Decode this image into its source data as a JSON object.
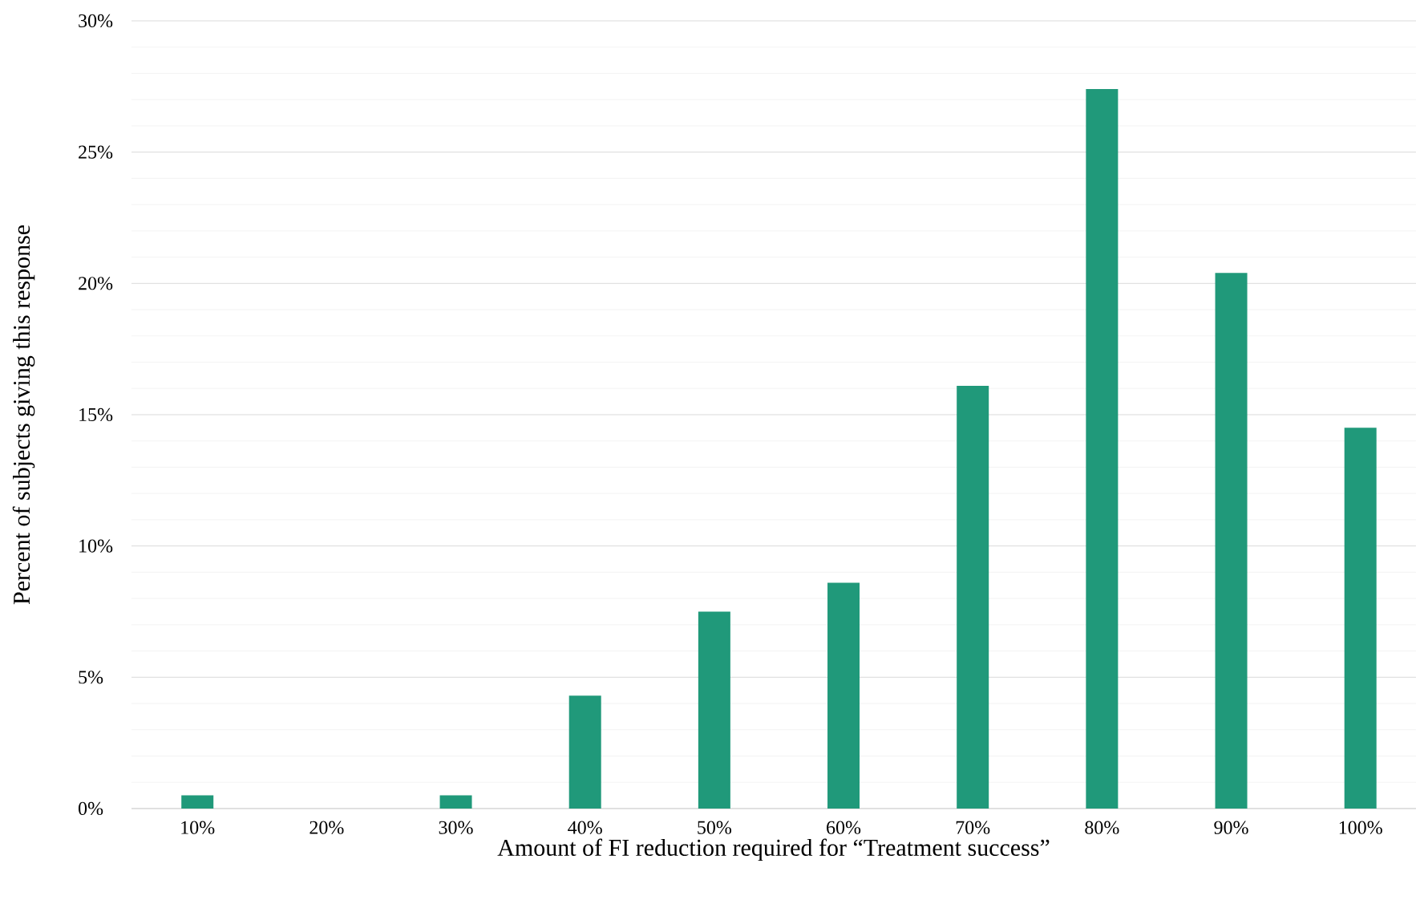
{
  "chart_data": {
    "type": "bar",
    "xlabel": "Amount of FI reduction required for “Treatment success”",
    "ylabel": "Percent of subjects giving this response",
    "categories": [
      "10%",
      "20%",
      "30%",
      "40%",
      "50%",
      "60%",
      "70%",
      "80%",
      "90%",
      "100%"
    ],
    "values": [
      0.5,
      0,
      0.5,
      4.3,
      7.5,
      8.6,
      16.1,
      27.4,
      20.4,
      14.5
    ],
    "color": "#20997a",
    "ylim": [
      0,
      30
    ],
    "yticks": [
      {
        "value": 0,
        "label": "0%"
      },
      {
        "value": 5,
        "label": "5%"
      },
      {
        "value": 10,
        "label": "10%"
      },
      {
        "value": 15,
        "label": "15%"
      },
      {
        "value": 20,
        "label": "20%"
      },
      {
        "value": 25,
        "label": "25%"
      },
      {
        "value": 30,
        "label": "30%"
      }
    ],
    "grid": "y"
  }
}
